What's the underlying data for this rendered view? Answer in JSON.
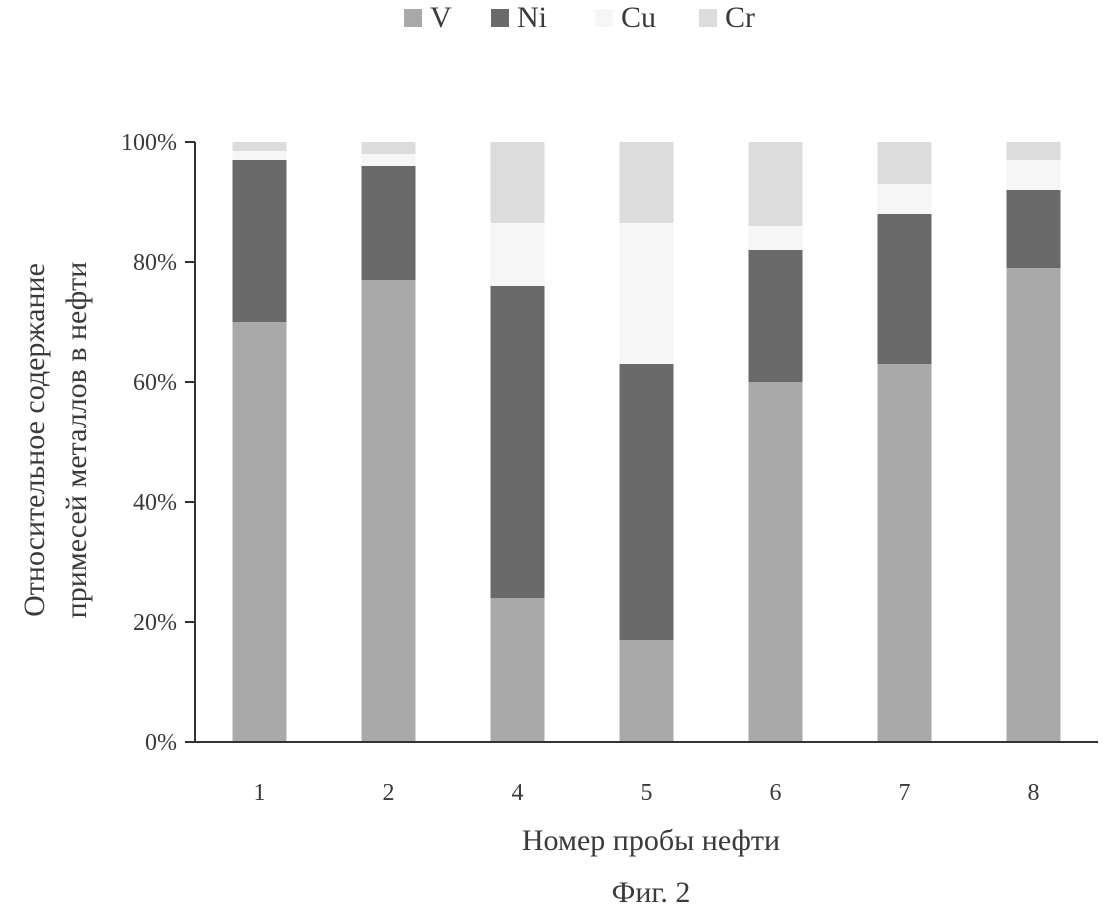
{
  "chart_data": {
    "type": "bar",
    "stacked": true,
    "categories": [
      "1",
      "2",
      "4",
      "5",
      "6",
      "7",
      "8"
    ],
    "series": [
      {
        "name": "V",
        "values": [
          70,
          77,
          24,
          17,
          60,
          63,
          79
        ],
        "color": "#a9a9a9"
      },
      {
        "name": "Ni",
        "values": [
          27,
          19,
          52,
          46,
          22,
          25,
          13
        ],
        "color": "#6a6a6a"
      },
      {
        "name": "Cu",
        "values": [
          1.5,
          2,
          10.5,
          23.5,
          4,
          5,
          5
        ],
        "color": "#f6f6f6"
      },
      {
        "name": "Cr",
        "values": [
          1.5,
          2,
          13.5,
          13.5,
          14,
          7,
          3
        ],
        "color": "#dcdcdc"
      }
    ],
    "ylim": [
      0,
      100
    ],
    "yticks": [
      "0%",
      "20%",
      "40%",
      "60%",
      "80%",
      "100%"
    ],
    "ylabel_line1": "Относительное содержание",
    "ylabel_line2": "примесей металлов в нефти",
    "xlabel": "Номер пробы нефти",
    "legend_position": "top-center",
    "grid": false
  },
  "caption": "Фиг. 2"
}
